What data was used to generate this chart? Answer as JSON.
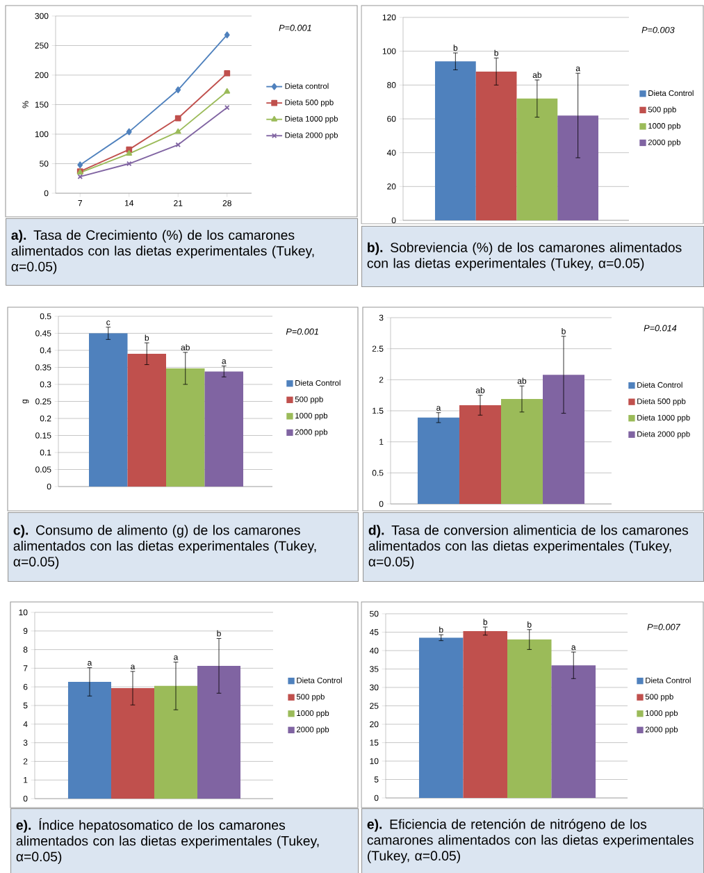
{
  "chart_data": [
    {
      "type": "line",
      "title": "**a).** Tasa de Crecimiento (%) de los camarones alimentados con las dietas experimentales (Tukey, α=0.05)",
      "ylabel": "%",
      "categories": [
        "7",
        "14",
        "21",
        "28"
      ],
      "series": [
        {
          "name": "Dieta control",
          "color": "#4f81bd",
          "marker": "diamond",
          "values": [
            48,
            104,
            175,
            268
          ]
        },
        {
          "name": "Dieta 500 ppb",
          "color": "#c0504d",
          "marker": "square",
          "values": [
            37,
            74,
            127,
            203
          ]
        },
        {
          "name": "Dieta 1000 ppb",
          "color": "#9bbb59",
          "marker": "triangle",
          "values": [
            35,
            67,
            104,
            172
          ]
        },
        {
          "name": "Dieta 2000 ppb",
          "color": "#8064a2",
          "marker": "cross",
          "values": [
            28,
            50,
            82,
            145
          ]
        }
      ],
      "ylim": [
        0,
        300
      ],
      "yticks": [
        0,
        50,
        100,
        150,
        200,
        250,
        300
      ],
      "grid": "y",
      "legend": "right",
      "line_style": "solid",
      "annotations": [
        "P=0.001"
      ]
    },
    {
      "type": "bar",
      "title": "**b).** Sobreviencia (%) de los camarones alimentados con las dietas experimentales (Tukey, α=0.05)",
      "categories": [
        null
      ],
      "series": [
        {
          "name": "Dieta Control",
          "color": "#4f81bd",
          "values": [
            94
          ],
          "errors": [
            5
          ]
        },
        {
          "name": "500 ppb",
          "color": "#c0504d",
          "values": [
            88
          ],
          "errors": [
            8
          ]
        },
        {
          "name": "1000 ppb",
          "color": "#9bbb59",
          "values": [
            72
          ],
          "errors": [
            11
          ]
        },
        {
          "name": "2000 ppb",
          "color": "#8064a2",
          "values": [
            62
          ],
          "errors": [
            25
          ]
        }
      ],
      "ylim": [
        0,
        120
      ],
      "yticks": [
        0,
        20,
        40,
        60,
        80,
        100,
        120
      ],
      "grid": "y",
      "legend": "right",
      "annotations": [
        "P=0.003",
        {
          "text": "b",
          "y": 99
        },
        {
          "text": "b",
          "y": 96
        },
        {
          "text": "ab",
          "y": 83
        },
        {
          "text": "a",
          "y": 87
        }
      ]
    },
    {
      "type": "bar",
      "title": "**c).** Consumo de alimento (g) de los camarones alimentados con las dietas experimentales (Tukey, α=0.05)",
      "ylabel": "g",
      "categories": [
        null
      ],
      "series": [
        {
          "name": "Dieta Control",
          "color": "#4f81bd",
          "values": [
            0.45
          ],
          "errors": [
            0.018
          ]
        },
        {
          "name": "500 ppb",
          "color": "#c0504d",
          "values": [
            0.39
          ],
          "errors": [
            0.032
          ]
        },
        {
          "name": "1000 ppb",
          "color": "#9bbb59",
          "values": [
            0.347
          ],
          "errors": [
            0.047
          ]
        },
        {
          "name": "2000 ppb",
          "color": "#8064a2",
          "values": [
            0.338
          ],
          "errors": [
            0.016
          ]
        }
      ],
      "ylim": [
        0,
        0.5
      ],
      "yticks": [
        0,
        0.05,
        0.1,
        0.15,
        0.2,
        0.25,
        0.3,
        0.35,
        0.4,
        0.45,
        0.5
      ],
      "grid": "y",
      "legend": "right",
      "annotations": [
        "P=0.001",
        {
          "text": "c",
          "y": 0.468
        },
        {
          "text": "b",
          "y": 0.422
        },
        {
          "text": "ab",
          "y": 0.394
        },
        {
          "text": "a",
          "y": 0.354
        }
      ]
    },
    {
      "type": "bar",
      "title": "**d).** Tasa de conversion alimenticia de los camarones alimentados con las dietas experimentales (Tukey, α=0.05)",
      "categories": [
        null
      ],
      "series": [
        {
          "name": "Dieta Control",
          "color": "#4f81bd",
          "values": [
            1.39
          ],
          "errors": [
            0.08
          ]
        },
        {
          "name": "Dieta 500 ppb",
          "color": "#c0504d",
          "values": [
            1.59
          ],
          "errors": [
            0.16
          ]
        },
        {
          "name": "Dieta 1000 ppb",
          "color": "#9bbb59",
          "values": [
            1.69
          ],
          "errors": [
            0.21
          ]
        },
        {
          "name": "Dieta 2000 ppb",
          "color": "#8064a2",
          "values": [
            2.08
          ],
          "errors": [
            0.62
          ]
        }
      ],
      "ylim": [
        0,
        3
      ],
      "yticks": [
        0,
        0.5,
        1,
        1.5,
        2,
        2.5,
        3
      ],
      "grid": "y",
      "legend": "right",
      "annotations": [
        "P=0.014",
        {
          "text": "a",
          "y": 1.47
        },
        {
          "text": "ab",
          "y": 1.75
        },
        {
          "text": "ab",
          "y": 1.9
        },
        {
          "text": "b",
          "y": 2.7
        }
      ]
    },
    {
      "type": "bar",
      "title": "**e).** Índice hepatosomatico de los camarones alimentados con las dietas experimentales (Tukey, α=0.05)",
      "categories": [
        null
      ],
      "series": [
        {
          "name": "Dieta Control",
          "color": "#4f81bd",
          "values": [
            6.27
          ],
          "errors": [
            0.76
          ]
        },
        {
          "name": "500 ppb",
          "color": "#c0504d",
          "values": [
            5.93
          ],
          "errors": [
            0.9
          ]
        },
        {
          "name": "1000 ppb",
          "color": "#9bbb59",
          "values": [
            6.05
          ],
          "errors": [
            1.28
          ]
        },
        {
          "name": "2000 ppb",
          "color": "#8064a2",
          "values": [
            7.13
          ],
          "errors": [
            1.47
          ]
        }
      ],
      "ylim": [
        0,
        10
      ],
      "yticks": [
        0,
        1,
        2,
        3,
        4,
        5,
        6,
        7,
        8,
        9,
        10
      ],
      "grid": "y",
      "legend": "right",
      "annotations": [
        {
          "text": "a",
          "y": 7.03
        },
        {
          "text": "a",
          "y": 6.83
        },
        {
          "text": "a",
          "y": 7.33
        },
        {
          "text": "b",
          "y": 8.6
        }
      ]
    },
    {
      "type": "bar",
      "title": "**e).** Eficiencia de retención de nitrógeno de los camarones alimentados con las dietas experimentales (Tukey, α=0.05)",
      "categories": [
        null
      ],
      "series": [
        {
          "name": "Dieta Control",
          "color": "#4f81bd",
          "values": [
            43.5
          ],
          "errors": [
            0.8
          ]
        },
        {
          "name": "500 ppb",
          "color": "#c0504d",
          "values": [
            45.3
          ],
          "errors": [
            1.1
          ]
        },
        {
          "name": "1000 ppb",
          "color": "#9bbb59",
          "values": [
            43.0
          ],
          "errors": [
            2.7
          ]
        },
        {
          "name": "2000 ppb",
          "color": "#8064a2",
          "values": [
            36.0
          ],
          "errors": [
            3.6
          ]
        }
      ],
      "ylim": [
        0,
        50
      ],
      "yticks": [
        0,
        5,
        10,
        15,
        20,
        25,
        30,
        35,
        40,
        45,
        50
      ],
      "grid": "y",
      "legend": "right",
      "annotations": [
        "P=0.007",
        {
          "text": "b",
          "y": 44.3
        },
        {
          "text": "b",
          "y": 46.4
        },
        {
          "text": "b",
          "y": 45.7
        },
        {
          "text": "a",
          "y": 39.6
        }
      ]
    }
  ]
}
